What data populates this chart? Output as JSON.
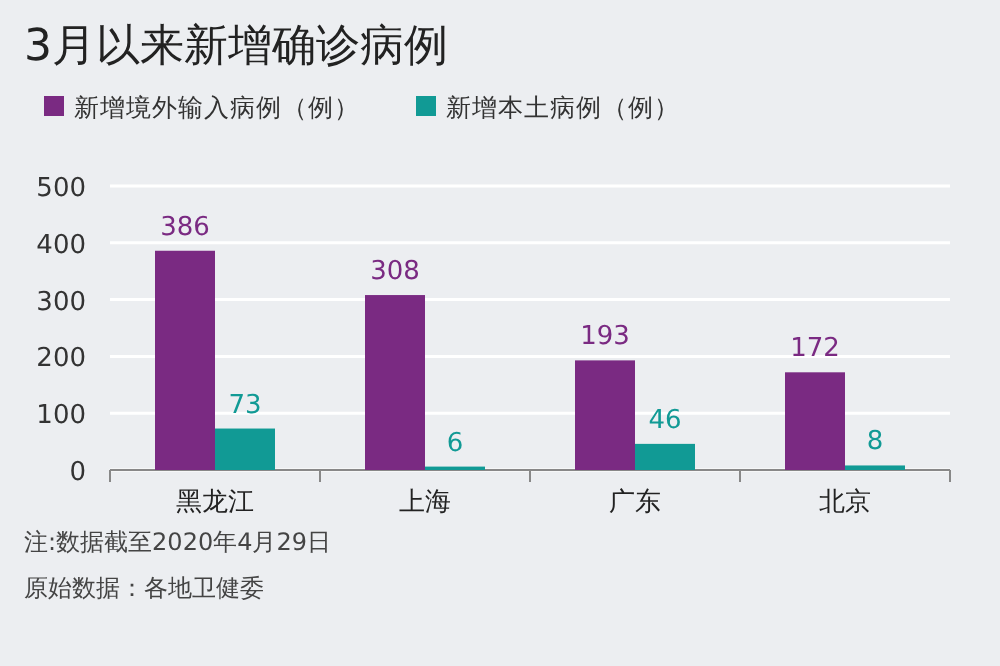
{
  "chart_data": {
    "type": "bar",
    "title": "3月以来新增确诊病例",
    "categories": [
      "黑龙江",
      "上海",
      "广东",
      "北京"
    ],
    "series": [
      {
        "name": "新增境外输入病例（例）",
        "color": "#7a2a82",
        "values": [
          386,
          308,
          193,
          172
        ]
      },
      {
        "name": "新增本土病例（例）",
        "color": "#119a95",
        "values": [
          73,
          6,
          46,
          8
        ]
      }
    ],
    "ylim": [
      0,
      500
    ],
    "yticks": [
      0,
      100,
      200,
      300,
      400,
      500
    ],
    "grid": "y",
    "legend": "top left",
    "data_labels": true,
    "annotations": [
      "注:数据截至2020年4月29日",
      "原始数据：各地卫健委"
    ]
  }
}
